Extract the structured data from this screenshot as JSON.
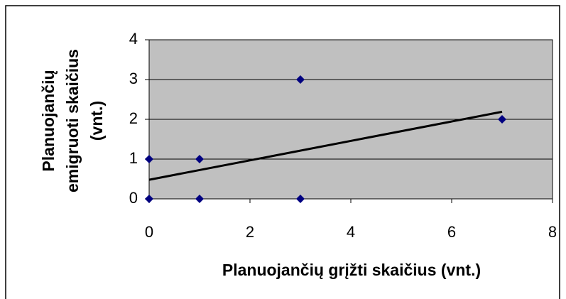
{
  "chart_data": {
    "type": "scatter",
    "xlabel": "Planuojančių grįžti skaičius (vnt.)",
    "ylabel": [
      "Planuojančių",
      "emigruoti skaičius",
      "(vnt.)"
    ],
    "series": [
      {
        "color": "#000080",
        "x": [
          0,
          0,
          1,
          1,
          3,
          3,
          7
        ],
        "values": [
          0,
          1,
          1,
          0,
          3,
          0,
          2
        ]
      }
    ],
    "trendline": {
      "color": "#000000",
      "x": [
        0,
        7
      ],
      "values": [
        0.48,
        2.19
      ]
    },
    "xlim": [
      0,
      8
    ],
    "xticks": [
      0,
      2,
      4,
      6,
      8
    ],
    "ylim": [
      0,
      4
    ],
    "yticks": [
      0,
      1,
      2,
      3,
      4
    ],
    "grid": true,
    "plot_background": "#c0c0c0"
  }
}
